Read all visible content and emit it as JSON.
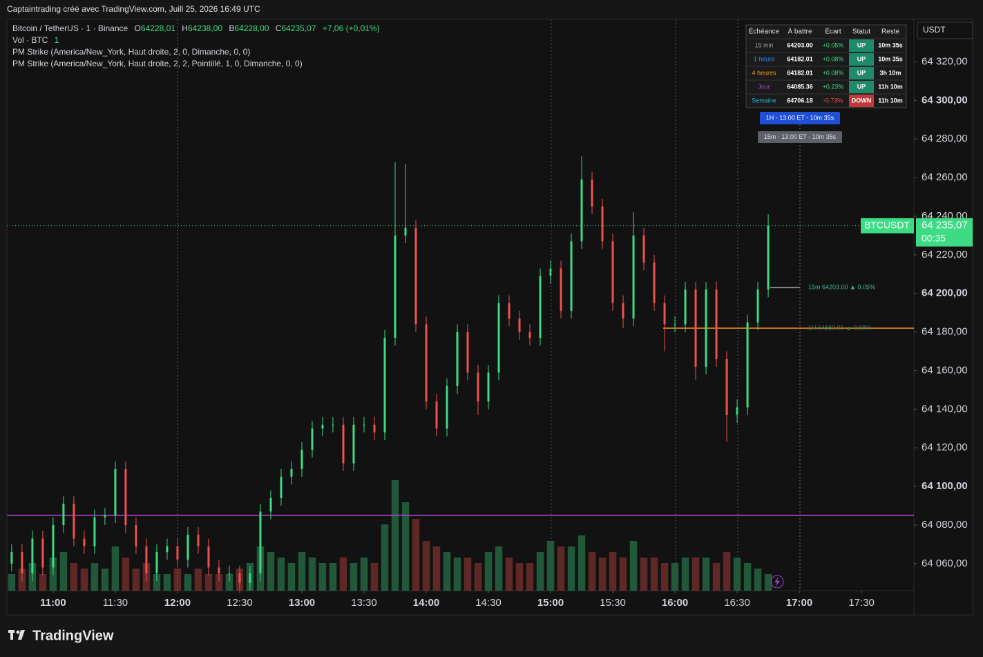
{
  "header": {
    "title": "Captaintrading créé avec TradingView.com, Juill 25, 2026 16:49 UTC",
    "logo": "TradingView"
  },
  "chart_data": {
    "type": "candlestick",
    "legend": {
      "symbol": "Bitcoin / TetherUS · 1 · Binance",
      "o_label": "O",
      "o": "64228,01",
      "h_label": "H",
      "h": "64238,00",
      "b_label": "B",
      "b": "64228,00",
      "c_label": "C",
      "c": "64235,07",
      "change": "+7,06 (+0,01%)",
      "volume_label": "Vol · BTC",
      "volume": "1",
      "indicators": [
        "PM Strike (America/New_York, Haut droite, 2, 0, Dimanche, 0, 0)",
        "PM Strike (America/New_York, Haut droite, 2, 2, Pointillé, 1, 0, Dimanche, 0, 0)"
      ]
    },
    "currency": "USDT",
    "up_color": "#3ddc84",
    "down_color": "#f0524f",
    "x": [
      640,
      645,
      650,
      655,
      660,
      665,
      670,
      675,
      680,
      685,
      690,
      695,
      700,
      705,
      710,
      715,
      720,
      725,
      730,
      735,
      740,
      745,
      750,
      755,
      760,
      765,
      770,
      775,
      780,
      785,
      790,
      795,
      800,
      805,
      810,
      815,
      820,
      825,
      830,
      835,
      840,
      845,
      850,
      855,
      860,
      865,
      870,
      875,
      880,
      885,
      890,
      895,
      900,
      905,
      910,
      915,
      920,
      925,
      930,
      935,
      940,
      945,
      950,
      955,
      960,
      965,
      970,
      975,
      980,
      985,
      990,
      995,
      1000,
      1005
    ],
    "open": [
      64060,
      64066,
      64055,
      64073,
      64058,
      64080,
      64091,
      64073,
      64069,
      64084,
      64085,
      64109,
      64080,
      64069,
      64055,
      64066,
      64069,
      64062,
      64075,
      64069,
      64058,
      64055,
      64055,
      64050,
      64055,
      64087,
      64094,
      64105,
      64109,
      64119,
      64130,
      64132,
      64132,
      64112,
      64132,
      64132,
      64128,
      64177,
      64230,
      64234,
      64184,
      64144,
      64130,
      64152,
      64180,
      64159,
      64144,
      64159,
      64195,
      64187,
      64180,
      64177,
      64209,
      64213,
      64191,
      64227,
      64259,
      64245,
      64227,
      64195,
      64187,
      64230,
      64216,
      64195,
      64184,
      64184,
      64202,
      64162,
      64202,
      64166,
      64137,
      64141,
      64185,
      64202
    ],
    "high": [
      64070,
      64070,
      64077,
      64077,
      64084,
      64095,
      64095,
      64077,
      64088,
      64089,
      64113,
      64113,
      64084,
      64073,
      64070,
      64073,
      64073,
      64079,
      64079,
      64073,
      64062,
      64059,
      64059,
      64059,
      64091,
      64098,
      64109,
      64113,
      64123,
      64134,
      64136,
      64136,
      64136,
      64136,
      64136,
      64136,
      64181,
      64268,
      64267,
      64238,
      64188,
      64148,
      64156,
      64184,
      64184,
      64163,
      64163,
      64199,
      64199,
      64191,
      64184,
      64213,
      64217,
      64217,
      64231,
      64271,
      64263,
      64249,
      64231,
      64199,
      64242,
      64234,
      64220,
      64199,
      64188,
      64206,
      64206,
      64206,
      64206,
      64170,
      64145,
      64189,
      64206,
      64241
    ],
    "low": [
      64056,
      64051,
      64051,
      64054,
      64054,
      64076,
      64069,
      64065,
      64065,
      64080,
      64081,
      64076,
      64065,
      64051,
      64051,
      64062,
      64058,
      64058,
      64065,
      64054,
      64051,
      64051,
      64046,
      64046,
      64051,
      64083,
      64090,
      64101,
      64105,
      64115,
      64126,
      64128,
      64108,
      64108,
      64128,
      64124,
      64124,
      64173,
      64226,
      64180,
      64140,
      64126,
      64126,
      64148,
      64155,
      64137,
      64140,
      64155,
      64183,
      64176,
      64173,
      64173,
      64205,
      64187,
      64187,
      64223,
      64241,
      64223,
      64191,
      64182,
      64183,
      64212,
      64191,
      64170,
      64180,
      64180,
      64155,
      64158,
      64162,
      64123,
      64133,
      64137,
      64181,
      64198
    ],
    "close": [
      64066,
      64055,
      64073,
      64058,
      64080,
      64091,
      64073,
      64069,
      64084,
      64085,
      64109,
      64080,
      64069,
      64055,
      64066,
      64069,
      64062,
      64075,
      64069,
      64058,
      64055,
      64055,
      64050,
      64055,
      64087,
      64094,
      64105,
      64109,
      64119,
      64130,
      64132,
      64132,
      64112,
      64132,
      64132,
      64128,
      64177,
      64230,
      64234,
      64184,
      64144,
      64130,
      64152,
      64180,
      64159,
      64144,
      64159,
      64195,
      64187,
      64180,
      64177,
      64209,
      64213,
      64191,
      64227,
      64259,
      64245,
      64227,
      64195,
      64187,
      64230,
      64216,
      64195,
      64184,
      64184,
      64202,
      64162,
      64202,
      64166,
      64137,
      64141,
      64185,
      64202,
      64235.07
    ],
    "volume": [
      3,
      4,
      5,
      3,
      6,
      7,
      5,
      4,
      5,
      4,
      8,
      6,
      4,
      5,
      3,
      3,
      4,
      3,
      4,
      3,
      3,
      3,
      4,
      5,
      8,
      7,
      6,
      5,
      7,
      6,
      5,
      5,
      6,
      5,
      6,
      5,
      12,
      20,
      16,
      13,
      9,
      8,
      7,
      6,
      6,
      5,
      7,
      8,
      6,
      5,
      5,
      7,
      9,
      8,
      8,
      10,
      7,
      6,
      7,
      6,
      9,
      6,
      6,
      5,
      5,
      6,
      6,
      6,
      5,
      7,
      6,
      5,
      4,
      3
    ],
    "xlim": [
      637.7,
      1075.3
    ],
    "xticks": [
      {
        "value": 660,
        "label": "11:00"
      },
      {
        "value": 690,
        "label": "11:30"
      },
      {
        "value": 720,
        "label": "12:00"
      },
      {
        "value": 750,
        "label": "12:30"
      },
      {
        "value": 780,
        "label": "13:00"
      },
      {
        "value": 810,
        "label": "13:30"
      },
      {
        "value": 840,
        "label": "14:00"
      },
      {
        "value": 870,
        "label": "14:30"
      },
      {
        "value": 900,
        "label": "15:00"
      },
      {
        "value": 930,
        "label": "15:30"
      },
      {
        "value": 960,
        "label": "16:00"
      },
      {
        "value": 990,
        "label": "16:30"
      },
      {
        "value": 1020,
        "label": "17:00"
      },
      {
        "value": 1050,
        "label": "17:30"
      }
    ],
    "ylim": [
      64046,
      64342
    ],
    "yticks": [
      {
        "value": 64060,
        "label": "64 060,00"
      },
      {
        "value": 64080,
        "label": "64 080,00"
      },
      {
        "value": 64100,
        "label": "64 100,00"
      },
      {
        "value": 64120,
        "label": "64 120,00"
      },
      {
        "value": 64140,
        "label": "64 140,00"
      },
      {
        "value": 64160,
        "label": "64 160,00"
      },
      {
        "value": 64180,
        "label": "64 180,00"
      },
      {
        "value": 64200,
        "label": "64 200,00"
      },
      {
        "value": 64220,
        "label": "64 220,00"
      },
      {
        "value": 64240,
        "label": "64 240,00"
      },
      {
        "value": 64260,
        "label": "64 260,00"
      },
      {
        "value": 64280,
        "label": "64 280,00"
      },
      {
        "value": 64300,
        "label": "64 300,00"
      },
      {
        "value": 64320,
        "label": "64 320,00"
      }
    ],
    "last_price": {
      "symbol": "BTCUSDT",
      "value": 64235.07,
      "label": "64 235,07",
      "countdown": "00:35"
    },
    "hlines": [
      {
        "value": 64085,
        "color": "#b53fcf"
      },
      {
        "value": 64182.01,
        "color": "#f7931a"
      }
    ],
    "strike_15m": {
      "value": 64203,
      "label": "15m  64203.00  ▲ 0.05%"
    },
    "strike_1h_label": "1H  64182.01  ▲ 0.08%",
    "badges": [
      "1H - 13:00 ET - 10m 35s",
      "15m - 13:00 ET - 10m 35s"
    ],
    "table": {
      "columns": [
        "Échéance",
        "À battre",
        "Écart",
        "Statut",
        "Reste"
      ],
      "rows": [
        [
          "15 min",
          "64203.00",
          "+0.05%",
          "UP",
          "10m 35s"
        ],
        [
          "1 heure",
          "64182.01",
          "+0.08%",
          "UP",
          "10m 35s"
        ],
        [
          "4 heures",
          "64182.01",
          "+0.08%",
          "UP",
          "3h 10m"
        ],
        [
          "Jour",
          "64085.36",
          "+0.23%",
          "UP",
          "11h 10m"
        ],
        [
          "Semaine",
          "64706.18",
          "-0.73%",
          "DOWN",
          "11h 10m"
        ]
      ]
    }
  }
}
